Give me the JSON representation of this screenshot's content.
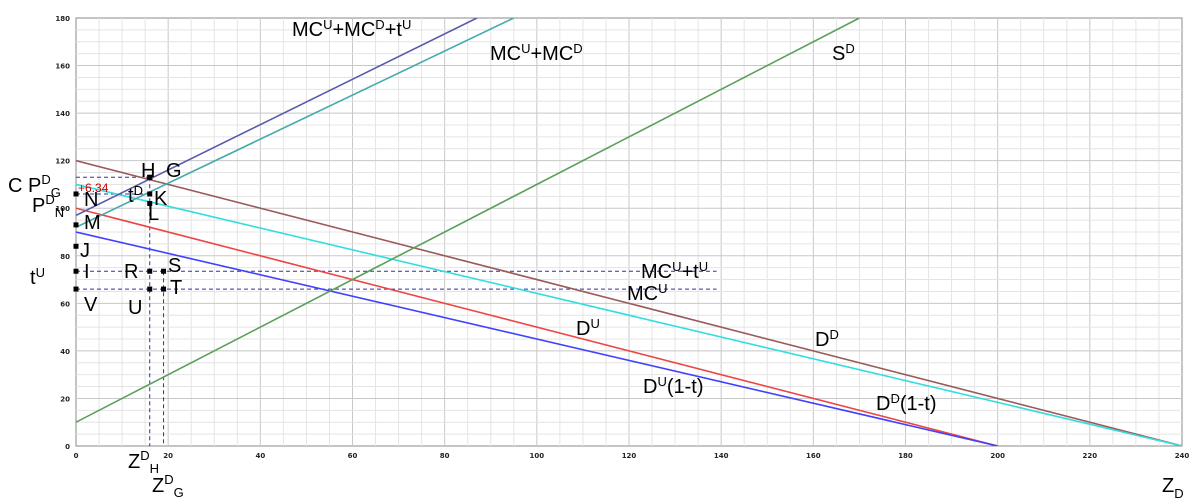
{
  "chart_data": {
    "type": "line",
    "x_ticks": [
      "0",
      "20",
      "40",
      "60",
      "80",
      "100",
      "120",
      "140",
      "160",
      "180",
      "200",
      "220",
      "240"
    ],
    "y_ticks": [
      "0",
      "20",
      "40",
      "60",
      "80",
      "100",
      "120",
      "140",
      "160",
      "180"
    ],
    "xlim": [
      0,
      240
    ],
    "ylim": [
      0,
      180
    ],
    "grid": true,
    "series": [
      {
        "name": "D^D",
        "color": "#9a5a5a",
        "x": [
          0,
          240
        ],
        "y": [
          120,
          0
        ]
      },
      {
        "name": "D^D(1-t)",
        "color": "#ee4444",
        "x": [
          0,
          200
        ],
        "y": [
          100,
          0
        ]
      },
      {
        "name": "D^U(1-t)",
        "color": "#4040ff",
        "x": [
          0,
          200
        ],
        "y": [
          90,
          0
        ]
      },
      {
        "name": "cyan demand",
        "color": "#33dddd",
        "x": [
          0,
          240
        ],
        "y": [
          110,
          0
        ]
      },
      {
        "name": "S^D",
        "color": "#5aa05a",
        "x": [
          0,
          170
        ],
        "y": [
          10,
          180
        ]
      },
      {
        "name": "MC^U+MC^D",
        "color": "#44aaaa",
        "x": [
          0,
          95
        ],
        "y": [
          92,
          180
        ]
      },
      {
        "name": "MC^U+MC^D+t^U",
        "color": "#5a5aaa",
        "x": [
          0,
          87
        ],
        "y": [
          97,
          180
        ]
      }
    ],
    "h_guides": [
      {
        "y": 113,
        "x_end": 16
      },
      {
        "y": 106,
        "x_end": 16
      },
      {
        "y": 73.5,
        "x_end": 139
      },
      {
        "y": 66,
        "x_end": 139
      }
    ],
    "v_guides": [
      {
        "x": 16,
        "y_top": 113
      },
      {
        "x": 19,
        "y_top": 73.5
      }
    ],
    "points": [
      {
        "name": "G",
        "x": 16,
        "y": 113
      },
      {
        "name": "H",
        "x": 16,
        "y": 113
      },
      {
        "name": "K",
        "x": 16,
        "y": 106
      },
      {
        "name": "L",
        "x": 16,
        "y": 102
      },
      {
        "name": "N",
        "x": 0,
        "y": 106
      },
      {
        "name": "M",
        "x": 0,
        "y": 93
      },
      {
        "name": "J",
        "x": 0,
        "y": 84
      },
      {
        "name": "I",
        "x": 0,
        "y": 73.5
      },
      {
        "name": "V",
        "x": 0,
        "y": 66
      },
      {
        "name": "R",
        "x": 16,
        "y": 73.5
      },
      {
        "name": "S",
        "x": 19,
        "y": 73.5
      },
      {
        "name": "U",
        "x": 16,
        "y": 66
      },
      {
        "name": "T",
        "x": 19,
        "y": 66
      }
    ],
    "labels": {
      "mc_sum_tax": "MCU+MCD+tU",
      "mc_sum": "MCU+MCD",
      "sd": "SD",
      "mcu_tu": "MCU+tU",
      "mcu": "MCU",
      "du": "DU",
      "dd": "DD",
      "du_1t": "DU(1-t)",
      "dd_1t": "DD(1-t)",
      "cp_value": "6.34",
      "x_axis": "ZD"
    }
  }
}
